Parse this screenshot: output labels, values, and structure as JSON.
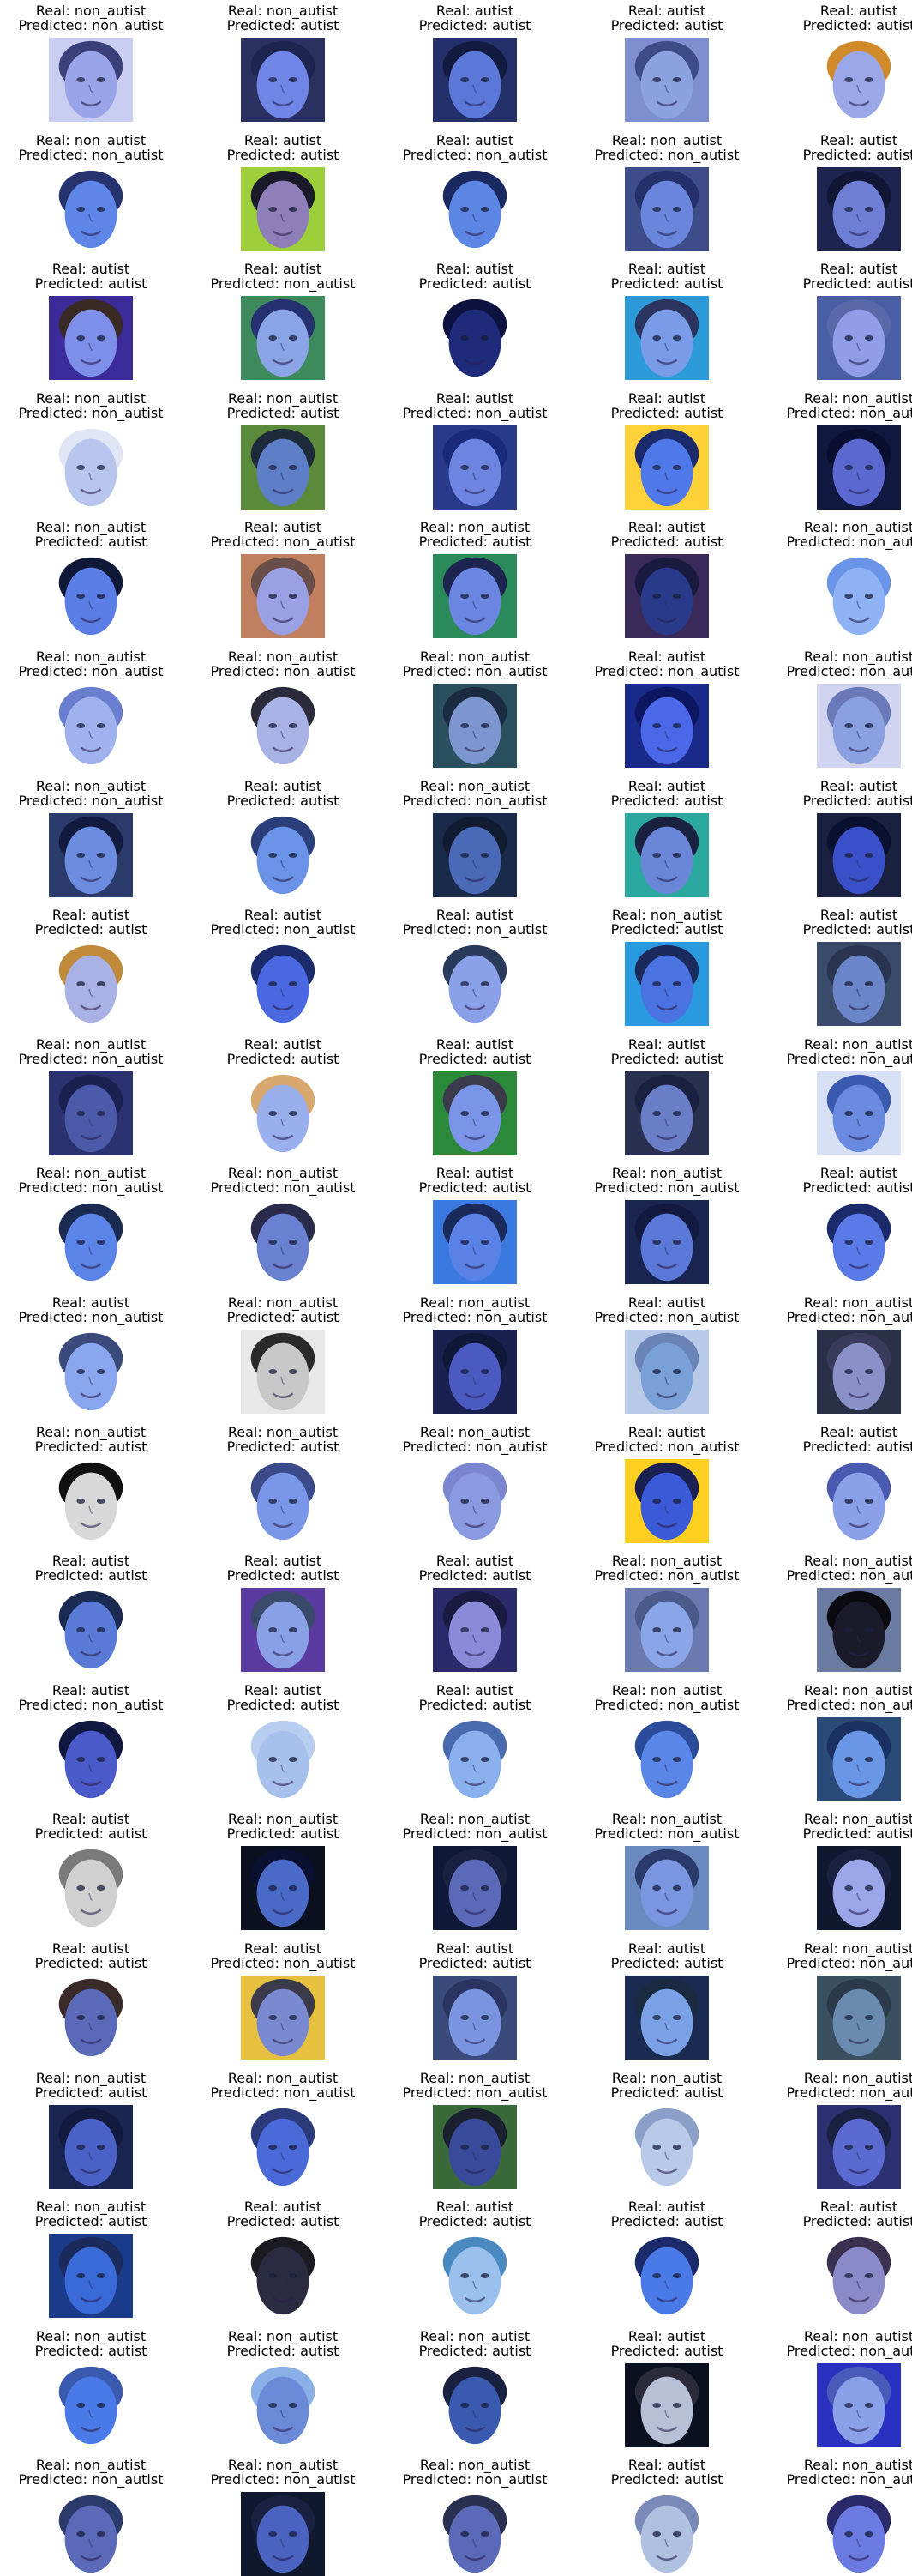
{
  "labels": {
    "real_prefix": "Real: ",
    "pred_prefix": "Predicted: "
  },
  "grid": [
    [
      {
        "real": "non_autist",
        "pred": "non_autist",
        "skin": "#9aa4e8",
        "bg": "#c9cdf2",
        "hair": "#3b3f7a"
      },
      {
        "real": "non_autist",
        "pred": "autist",
        "skin": "#6f86e6",
        "bg": "#2a3060",
        "hair": "#1d2450"
      },
      {
        "real": "autist",
        "pred": "autist",
        "skin": "#5b78d8",
        "bg": "#23306a",
        "hair": "#121a40"
      },
      {
        "real": "autist",
        "pred": "autist",
        "skin": "#8da3e0",
        "bg": "#7d8fcf",
        "hair": "#3b4c86"
      },
      {
        "real": "autist",
        "pred": "autist",
        "skin": "#9aa8ea",
        "bg": "#ffffff",
        "hair": "#d18a2a"
      }
    ],
    [
      {
        "real": "non_autist",
        "pred": "non_autist",
        "skin": "#5d86e8",
        "bg": "#ffffff",
        "hair": "#26336f"
      },
      {
        "real": "autist",
        "pred": "autist",
        "skin": "#8f7fb8",
        "bg": "#9ccf3a",
        "hair": "#1a1a2a"
      },
      {
        "real": "autist",
        "pred": "non_autist",
        "skin": "#5c86e4",
        "bg": "#ffffff",
        "hair": "#1a2a60"
      },
      {
        "real": "non_autist",
        "pred": "non_autist",
        "skin": "#6a86dc",
        "bg": "#3d4d8a",
        "hair": "#23306a"
      },
      {
        "real": "autist",
        "pred": "autist",
        "skin": "#6e7ed4",
        "bg": "#1d2450",
        "hair": "#101633"
      }
    ],
    [
      {
        "real": "autist",
        "pred": "autist",
        "skin": "#7d8fe8",
        "bg": "#3b2a9a",
        "hair": "#3a2a25"
      },
      {
        "real": "autist",
        "pred": "non_autist",
        "skin": "#8aa4e6",
        "bg": "#3d8a5c",
        "hair": "#243070"
      },
      {
        "real": "autist",
        "pred": "autist",
        "skin": "#1e2a7a",
        "bg": "#ffffff",
        "hair": "#0d1240"
      },
      {
        "real": "autist",
        "pred": "autist",
        "skin": "#7a9be8",
        "bg": "#2c9ad8",
        "hair": "#2a345f"
      },
      {
        "real": "autist",
        "pred": "autist",
        "skin": "#8f9ee6",
        "bg": "#4a5ea6",
        "hair": "#5868a8"
      }
    ],
    [
      {
        "real": "non_autist",
        "pred": "non_autist",
        "skin": "#b8c6ee",
        "bg": "#ffffff",
        "hair": "#e0e6f6"
      },
      {
        "real": "non_autist",
        "pred": "autist",
        "skin": "#5f7ec8",
        "bg": "#5a8a3a",
        "hair": "#1d2a3a"
      },
      {
        "real": "autist",
        "pred": "non_autist",
        "skin": "#6d84e0",
        "bg": "#2a3a8a",
        "hair": "#1a2a7a"
      },
      {
        "real": "autist",
        "pred": "autist",
        "skin": "#4f78e8",
        "bg": "#ffd23a",
        "hair": "#1a2a6a"
      },
      {
        "real": "non_autist",
        "pred": "non_autist",
        "skin": "#5a68cf",
        "bg": "#101840",
        "hair": "#0a0f30"
      }
    ],
    [
      {
        "real": "non_autist",
        "pred": "autist",
        "skin": "#5a7ee6",
        "bg": "#ffffff",
        "hair": "#101838"
      },
      {
        "real": "autist",
        "pred": "non_autist",
        "skin": "#9aa0e4",
        "bg": "#c08060",
        "hair": "#6a4e4a"
      },
      {
        "real": "non_autist",
        "pred": "autist",
        "skin": "#6a86e0",
        "bg": "#2a8a5a",
        "hair": "#1d2450"
      },
      {
        "real": "autist",
        "pred": "autist",
        "skin": "#2a3a8a",
        "bg": "#3a2a5a",
        "hair": "#1a1a40"
      },
      {
        "real": "non_autist",
        "pred": "non_autist",
        "skin": "#8fb2f4",
        "bg": "#ffffff",
        "hair": "#6a94e8"
      }
    ],
    [
      {
        "real": "non_autist",
        "pred": "non_autist",
        "skin": "#9fb2ee",
        "bg": "#ffffff",
        "hair": "#6a7ecf"
      },
      {
        "real": "non_autist",
        "pred": "non_autist",
        "skin": "#a8b2e4",
        "bg": "#ffffff",
        "hair": "#2a2a3a"
      },
      {
        "real": "non_autist",
        "pred": "non_autist",
        "skin": "#7d96cf",
        "bg": "#2a5060",
        "hair": "#1a2a40"
      },
      {
        "real": "autist",
        "pred": "non_autist",
        "skin": "#4a68e8",
        "bg": "#1a2a8a",
        "hair": "#0d1660"
      },
      {
        "real": "non_autist",
        "pred": "non_autist",
        "skin": "#8aa0e0",
        "bg": "#d0d4f0",
        "hair": "#6a7ab8"
      }
    ],
    [
      {
        "real": "non_autist",
        "pred": "non_autist",
        "skin": "#6c8ce0",
        "bg": "#2a3a6a",
        "hair": "#121a40"
      },
      {
        "real": "autist",
        "pred": "autist",
        "skin": "#6a92e6",
        "bg": "#ffffff",
        "hair": "#2a3e7a"
      },
      {
        "real": "non_autist",
        "pred": "non_autist",
        "skin": "#4a6ab8",
        "bg": "#1a2a4a",
        "hair": "#101a30"
      },
      {
        "real": "autist",
        "pred": "autist",
        "skin": "#6a86d8",
        "bg": "#2aa8a0",
        "hair": "#1a2040"
      },
      {
        "real": "autist",
        "pred": "autist",
        "skin": "#3a50c8",
        "bg": "#1a2040",
        "hair": "#0a1030"
      }
    ],
    [
      {
        "real": "autist",
        "pred": "autist",
        "skin": "#a8b2e4",
        "bg": "#ffffff",
        "hair": "#c08a3a"
      },
      {
        "real": "autist",
        "pred": "non_autist",
        "skin": "#4a68e0",
        "bg": "#ffffff",
        "hair": "#1a2a6a"
      },
      {
        "real": "autist",
        "pred": "non_autist",
        "skin": "#8aa0e8",
        "bg": "#ffffff",
        "hair": "#2a3a5a"
      },
      {
        "real": "non_autist",
        "pred": "autist",
        "skin": "#4a72e0",
        "bg": "#2a9ae0",
        "hair": "#1a2a5a"
      },
      {
        "real": "autist",
        "pred": "autist",
        "skin": "#6a86c8",
        "bg": "#3a4a6a",
        "hair": "#2a3450"
      }
    ],
    [
      {
        "real": "non_autist",
        "pred": "non_autist",
        "skin": "#4a5aa8",
        "bg": "#2a3270",
        "hair": "#1a2050"
      },
      {
        "real": "autist",
        "pred": "autist",
        "skin": "#9ab0ee",
        "bg": "#ffffff",
        "hair": "#d8a870"
      },
      {
        "real": "autist",
        "pred": "autist",
        "skin": "#7a94e8",
        "bg": "#2a8a3a",
        "hair": "#3a3a4a"
      },
      {
        "real": "autist",
        "pred": "autist",
        "skin": "#6a7ec8",
        "bg": "#2a3050",
        "hair": "#1a2040"
      },
      {
        "real": "non_autist",
        "pred": "non_autist",
        "skin": "#6a8ae0",
        "bg": "#d8e0f6",
        "hair": "#3a5ab0"
      }
    ],
    [
      {
        "real": "non_autist",
        "pred": "non_autist",
        "skin": "#5a84e8",
        "bg": "#ffffff",
        "hair": "#1a2a50"
      },
      {
        "real": "non_autist",
        "pred": "non_autist",
        "skin": "#6a80d0",
        "bg": "#ffffff",
        "hair": "#2a2a4a"
      },
      {
        "real": "autist",
        "pred": "autist",
        "skin": "#5a82e6",
        "bg": "#3a7ae0",
        "hair": "#1a2a5a"
      },
      {
        "real": "non_autist",
        "pred": "non_autist",
        "skin": "#5a78d8",
        "bg": "#1a2450",
        "hair": "#121a40"
      },
      {
        "real": "autist",
        "pred": "autist",
        "skin": "#5a7ae8",
        "bg": "#ffffff",
        "hair": "#1a2a6a"
      }
    ],
    [
      {
        "real": "autist",
        "pred": "non_autist",
        "skin": "#8aa6ee",
        "bg": "#ffffff",
        "hair": "#3a4a7a"
      },
      {
        "real": "non_autist",
        "pred": "autist",
        "skin": "#c8c8c8",
        "bg": "#e8e8e8",
        "hair": "#2a2a2a"
      },
      {
        "real": "non_autist",
        "pred": "non_autist",
        "skin": "#4a5ac0",
        "bg": "#1a2050",
        "hair": "#101838"
      },
      {
        "real": "autist",
        "pred": "non_autist",
        "skin": "#7aa0d8",
        "bg": "#b8cae8",
        "hair": "#6a84b8"
      },
      {
        "real": "non_autist",
        "pred": "non_autist",
        "skin": "#8a90c8",
        "bg": "#2a3048",
        "hair": "#3a3a5a"
      }
    ],
    [
      {
        "real": "non_autist",
        "pred": "autist",
        "skin": "#d8d8d8",
        "bg": "#ffffff",
        "hair": "#101010"
      },
      {
        "real": "non_autist",
        "pred": "autist",
        "skin": "#7a96e8",
        "bg": "#ffffff",
        "hair": "#3a4a8a"
      },
      {
        "real": "non_autist",
        "pred": "non_autist",
        "skin": "#8a9ae0",
        "bg": "#ffffff",
        "hair": "#7a86d0"
      },
      {
        "real": "autist",
        "pred": "non_autist",
        "skin": "#3a5ad8",
        "bg": "#ffd020",
        "hair": "#1a2050"
      },
      {
        "real": "autist",
        "pred": "autist",
        "skin": "#8aa0e8",
        "bg": "#ffffff",
        "hair": "#4a5ab0"
      }
    ],
    [
      {
        "real": "autist",
        "pred": "autist",
        "skin": "#5a7ad8",
        "bg": "#ffffff",
        "hair": "#1a2a50"
      },
      {
        "real": "autist",
        "pred": "autist",
        "skin": "#8aa0e6",
        "bg": "#5a3aa0",
        "hair": "#3a4a6a"
      },
      {
        "real": "autist",
        "pred": "autist",
        "skin": "#8a8ad8",
        "bg": "#2a2a6a",
        "hair": "#1a1a40"
      },
      {
        "real": "non_autist",
        "pred": "non_autist",
        "skin": "#8aa6e8",
        "bg": "#6a7ab0",
        "hair": "#4a5a8a"
      },
      {
        "real": "non_autist",
        "pred": "non_autist",
        "skin": "#1a1a2a",
        "bg": "#6a7aa0",
        "hair": "#0a0a10"
      }
    ],
    [
      {
        "real": "autist",
        "pred": "non_autist",
        "skin": "#4a5ac8",
        "bg": "#ffffff",
        "hair": "#101840"
      },
      {
        "real": "autist",
        "pred": "autist",
        "skin": "#a8c0ec",
        "bg": "#ffffff",
        "hair": "#b8cef0"
      },
      {
        "real": "autist",
        "pred": "autist",
        "skin": "#8ab0ee",
        "bg": "#ffffff",
        "hair": "#4a6ab0"
      },
      {
        "real": "non_autist",
        "pred": "non_autist",
        "skin": "#5a86e8",
        "bg": "#ffffff",
        "hair": "#2a4a9a"
      },
      {
        "real": "non_autist",
        "pred": "non_autist",
        "skin": "#6a96e6",
        "bg": "#2a4a7a",
        "hair": "#1a3060"
      }
    ],
    [
      {
        "real": "autist",
        "pred": "autist",
        "skin": "#d0d0d0",
        "bg": "#ffffff",
        "hair": "#7a7a7a"
      },
      {
        "real": "non_autist",
        "pred": "autist",
        "skin": "#4a6ac8",
        "bg": "#0a1020",
        "hair": "#0a1030"
      },
      {
        "real": "non_autist",
        "pred": "non_autist",
        "skin": "#5a6ab8",
        "bg": "#101838",
        "hair": "#1a2040"
      },
      {
        "real": "non_autist",
        "pred": "non_autist",
        "skin": "#7a96e0",
        "bg": "#6a8ac0",
        "hair": "#2a3a6a"
      },
      {
        "real": "non_autist",
        "pred": "autist",
        "skin": "#9aa6e8",
        "bg": "#101830",
        "hair": "#1a2040"
      }
    ],
    [
      {
        "real": "autist",
        "pred": "autist",
        "skin": "#5a6ab8",
        "bg": "#ffffff",
        "hair": "#3a2a2a"
      },
      {
        "real": "autist",
        "pred": "non_autist",
        "skin": "#7a8ad0",
        "bg": "#e8c040",
        "hair": "#3a3a4a"
      },
      {
        "real": "autist",
        "pred": "autist",
        "skin": "#7a94e0",
        "bg": "#3a4a7a",
        "hair": "#2a3460"
      },
      {
        "real": "autist",
        "pred": "autist",
        "skin": "#7aa0e6",
        "bg": "#1a2a50",
        "hair": "#1a2a40"
      },
      {
        "real": "non_autist",
        "pred": "non_autist",
        "skin": "#6a8ab0",
        "bg": "#3a5060",
        "hair": "#2a3a4a"
      }
    ],
    [
      {
        "real": "non_autist",
        "pred": "autist",
        "skin": "#4a62c8",
        "bg": "#1a2450",
        "hair": "#121a40"
      },
      {
        "real": "non_autist",
        "pred": "non_autist",
        "skin": "#4a6ad8",
        "bg": "#ffffff",
        "hair": "#2a3a7a"
      },
      {
        "real": "non_autist",
        "pred": "non_autist",
        "skin": "#3a4a9a",
        "bg": "#3a6a3a",
        "hair": "#1a2030"
      },
      {
        "real": "non_autist",
        "pred": "autist",
        "skin": "#b8cae8",
        "bg": "#ffffff",
        "hair": "#8aa0c8"
      },
      {
        "real": "non_autist",
        "pred": "non_autist",
        "skin": "#5a6ad0",
        "bg": "#2a3070",
        "hair": "#1a2040"
      }
    ],
    [
      {
        "real": "non_autist",
        "pred": "autist",
        "skin": "#3a6ad8",
        "bg": "#1a3a8a",
        "hair": "#1a2a5a"
      },
      {
        "real": "autist",
        "pred": "autist",
        "skin": "#2a2a40",
        "bg": "#ffffff",
        "hair": "#1a1a20"
      },
      {
        "real": "autist",
        "pred": "autist",
        "skin": "#9ac0ee",
        "bg": "#ffffff",
        "hair": "#4a8ac0"
      },
      {
        "real": "autist",
        "pred": "autist",
        "skin": "#4a7ae8",
        "bg": "#ffffff",
        "hair": "#1a2a6a"
      },
      {
        "real": "autist",
        "pred": "autist",
        "skin": "#8a8ac8",
        "bg": "#ffffff",
        "hair": "#3a3050"
      }
    ],
    [
      {
        "real": "non_autist",
        "pred": "autist",
        "skin": "#4a7ae8",
        "bg": "#ffffff",
        "hair": "#3a5ab0"
      },
      {
        "real": "non_autist",
        "pred": "autist",
        "skin": "#6a8ad8",
        "bg": "#ffffff",
        "hair": "#8ab0e8"
      },
      {
        "real": "non_autist",
        "pred": "autist",
        "skin": "#3a5ab0",
        "bg": "#ffffff",
        "hair": "#1a2040"
      },
      {
        "real": "autist",
        "pred": "autist",
        "skin": "#b8c0d8",
        "bg": "#0a1020",
        "hair": "#2a2a3a"
      },
      {
        "real": "non_autist",
        "pred": "non_autist",
        "skin": "#8aa0e8",
        "bg": "#2a30c0",
        "hair": "#4a5ab8"
      }
    ],
    [
      {
        "real": "non_autist",
        "pred": "non_autist",
        "skin": "#5a6ab8",
        "bg": "#ffffff",
        "hair": "#2a3a6a"
      },
      {
        "real": "non_autist",
        "pred": "non_autist",
        "skin": "#4a62c0",
        "bg": "#101830",
        "hair": "#1a2040"
      },
      {
        "real": "non_autist",
        "pred": "non_autist",
        "skin": "#5a6ab8",
        "bg": "#ffffff",
        "hair": "#2a3050"
      },
      {
        "real": "autist",
        "pred": "autist",
        "skin": "#b0c0e0",
        "bg": "#ffffff",
        "hair": "#7a8ab8"
      },
      {
        "real": "non_autist",
        "pred": "non_autist",
        "skin": "#6a7ae0",
        "bg": "#ffffff",
        "hair": "#2a2a6a"
      }
    ]
  ]
}
